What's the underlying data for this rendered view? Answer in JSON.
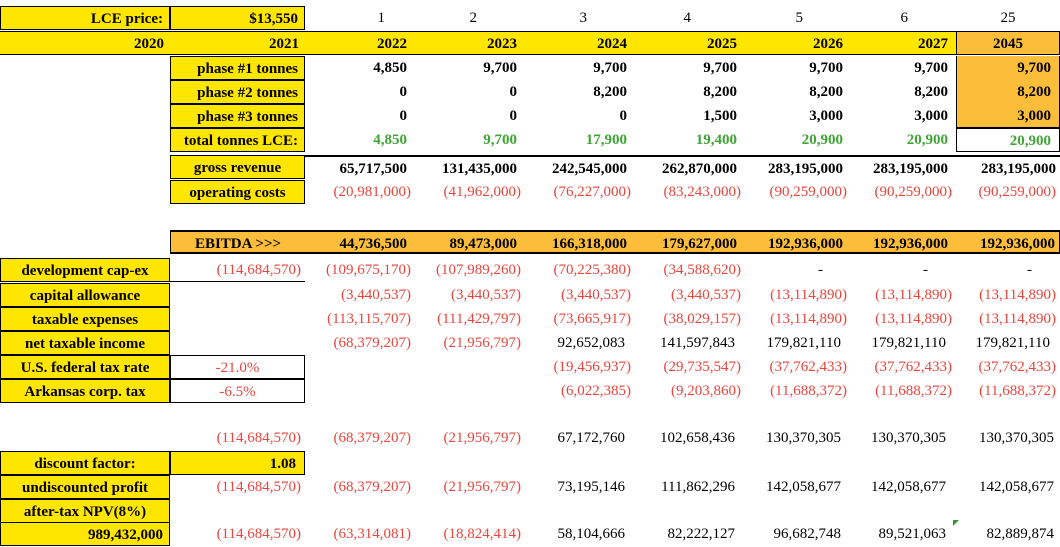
{
  "header": {
    "lce_label": "LCE price:",
    "lce_value": "$13,550",
    "year_index": [
      "1",
      "2",
      "3",
      "4",
      "5",
      "6",
      "25"
    ],
    "year_a": "2020",
    "year_b": "2021",
    "years": [
      "2022",
      "2023",
      "2024",
      "2025",
      "2026",
      "2027",
      "2045"
    ]
  },
  "rows": {
    "phase1": {
      "label": "phase #1 tonnes",
      "values": [
        "4,850",
        "9,700",
        "9,700",
        "9,700",
        "9,700",
        "9,700",
        "9,700"
      ]
    },
    "phase2": {
      "label": "phase #2 tonnes",
      "values": [
        "0",
        "0",
        "8,200",
        "8,200",
        "8,200",
        "8,200",
        "8,200"
      ]
    },
    "phase3": {
      "label": "phase #3 tonnes",
      "values": [
        "0",
        "0",
        "0",
        "1,500",
        "3,000",
        "3,000",
        "3,000"
      ]
    },
    "total": {
      "label": "total tonnes LCE:",
      "values": [
        "4,850",
        "9,700",
        "17,900",
        "19,400",
        "20,900",
        "20,900",
        "20,900"
      ]
    },
    "gross": {
      "label": "gross revenue",
      "values": [
        "65,717,500",
        "131,435,000",
        "242,545,000",
        "262,870,000",
        "283,195,000",
        "283,195,000",
        "283,195,000"
      ]
    },
    "opex": {
      "label": "operating costs",
      "values": [
        "(20,981,000)",
        "(41,962,000)",
        "(76,227,000)",
        "(83,243,000)",
        "(90,259,000)",
        "(90,259,000)",
        "(90,259,000)"
      ]
    },
    "ebitda": {
      "label": "EBITDA >>>",
      "values": [
        "44,736,500",
        "89,473,000",
        "166,318,000",
        "179,627,000",
        "192,936,000",
        "192,936,000",
        "192,936,000"
      ]
    },
    "devcap": {
      "label": "development cap-ex",
      "pre": "(114,684,570)",
      "values": [
        "(109,675,170)",
        "(107,989,260)",
        "(70,225,380)",
        "(34,588,620)",
        "-",
        "-",
        "-"
      ]
    },
    "capallow": {
      "label": "capital allowance",
      "values": [
        "(3,440,537)",
        "(3,440,537)",
        "(3,440,537)",
        "(3,440,537)",
        "(13,114,890)",
        "(13,114,890)",
        "(13,114,890)"
      ]
    },
    "taxexp": {
      "label": "taxable expenses",
      "values": [
        "(113,115,707)",
        "(111,429,797)",
        "(73,665,917)",
        "(38,029,157)",
        "(13,114,890)",
        "(13,114,890)",
        "(13,114,890)"
      ]
    },
    "nti": {
      "label": "net taxable income",
      "values": [
        "(68,379,207)",
        "(21,956,797)",
        "92,652,083",
        "141,597,843",
        "179,821,110",
        "179,821,110",
        "179,821,110"
      ]
    },
    "fed": {
      "label": "U.S. federal tax rate",
      "rate": "-21.0%",
      "values": [
        "",
        "",
        "(19,456,937)",
        "(29,735,547)",
        "(37,762,433)",
        "(37,762,433)",
        "(37,762,433)"
      ]
    },
    "ark": {
      "label": "Arkansas corp. tax",
      "rate": "-6.5%",
      "values": [
        "",
        "",
        "(6,022,385)",
        "(9,203,860)",
        "(11,688,372)",
        "(11,688,372)",
        "(11,688,372)"
      ]
    },
    "net": {
      "pre": "(114,684,570)",
      "values": [
        "(68,379,207)",
        "(21,956,797)",
        "67,172,760",
        "102,658,436",
        "130,370,305",
        "130,370,305",
        "130,370,305"
      ]
    },
    "discount": {
      "label": "discount factor:",
      "value": "1.08"
    },
    "undisc": {
      "label": "undiscounted profit",
      "pre": "(114,684,570)",
      "values": [
        "(68,379,207)",
        "(21,956,797)",
        "73,195,146",
        "111,862,296",
        "142,058,677",
        "142,058,677",
        "142,058,677"
      ]
    },
    "npv": {
      "label": "after-tax NPV(8%)",
      "value": "989,432,000",
      "pre": "(114,684,570)",
      "values": [
        "(63,314,081)",
        "(18,824,414)",
        "58,104,666",
        "82,222,127",
        "96,682,748",
        "89,521,063",
        "82,889,874"
      ]
    }
  },
  "colors": {
    "yellow": "#ffe600",
    "orange": "#fbbd3a",
    "red": "#e8453c",
    "green": "#3fa535"
  }
}
